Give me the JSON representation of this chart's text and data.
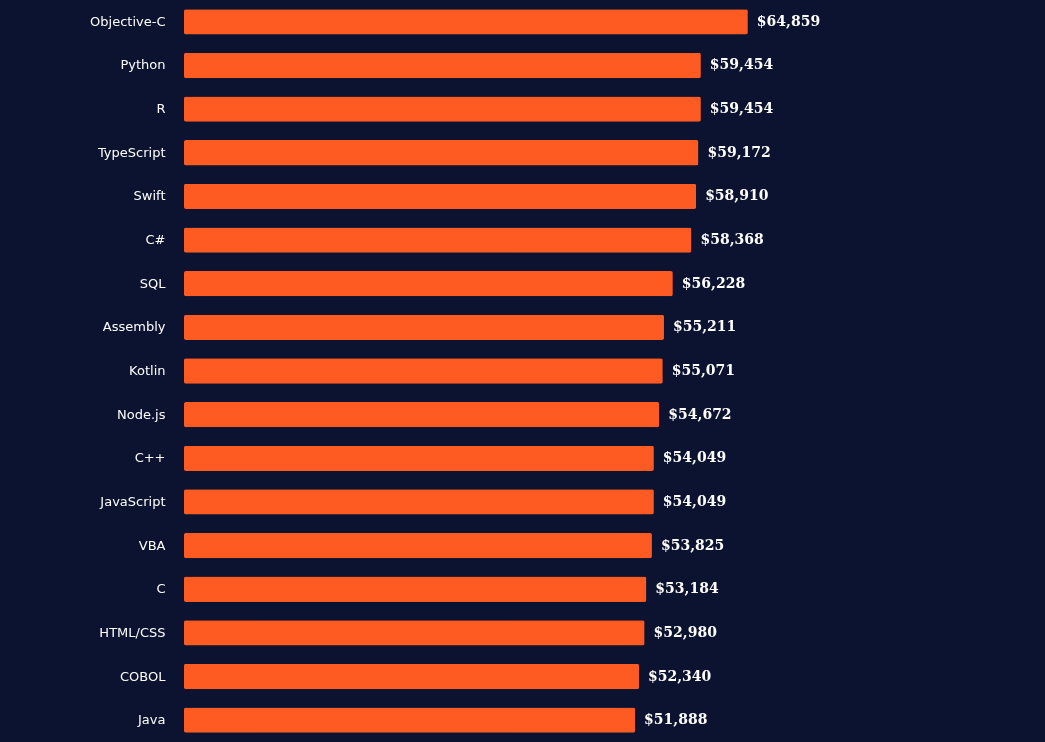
{
  "chart_data": {
    "type": "bar",
    "orientation": "horizontal",
    "value_labels": [
      "$64,859",
      "$59,454",
      "$59,454",
      "$59,172",
      "$58,910",
      "$58,368",
      "$56,228",
      "$55,211",
      "$55,071",
      "$54,672",
      "$54,049",
      "$54,049",
      "$53,825",
      "$53,184",
      "$52,980",
      "$52,340",
      "$51,888"
    ],
    "categories": [
      "Objective-C",
      "Python",
      "R",
      "TypeScript",
      "Swift",
      "C#",
      "SQL",
      "Assembly",
      "Kotlin",
      "Node.js",
      "C++",
      "JavaScript",
      "VBA",
      "C",
      "HTML/CSS",
      "COBOL",
      "Java"
    ],
    "values": [
      64859,
      59454,
      59454,
      59172,
      58910,
      58368,
      56228,
      55211,
      55071,
      54672,
      54049,
      54049,
      53825,
      53184,
      52980,
      52340,
      51888
    ],
    "color": "#fe5b22"
  }
}
